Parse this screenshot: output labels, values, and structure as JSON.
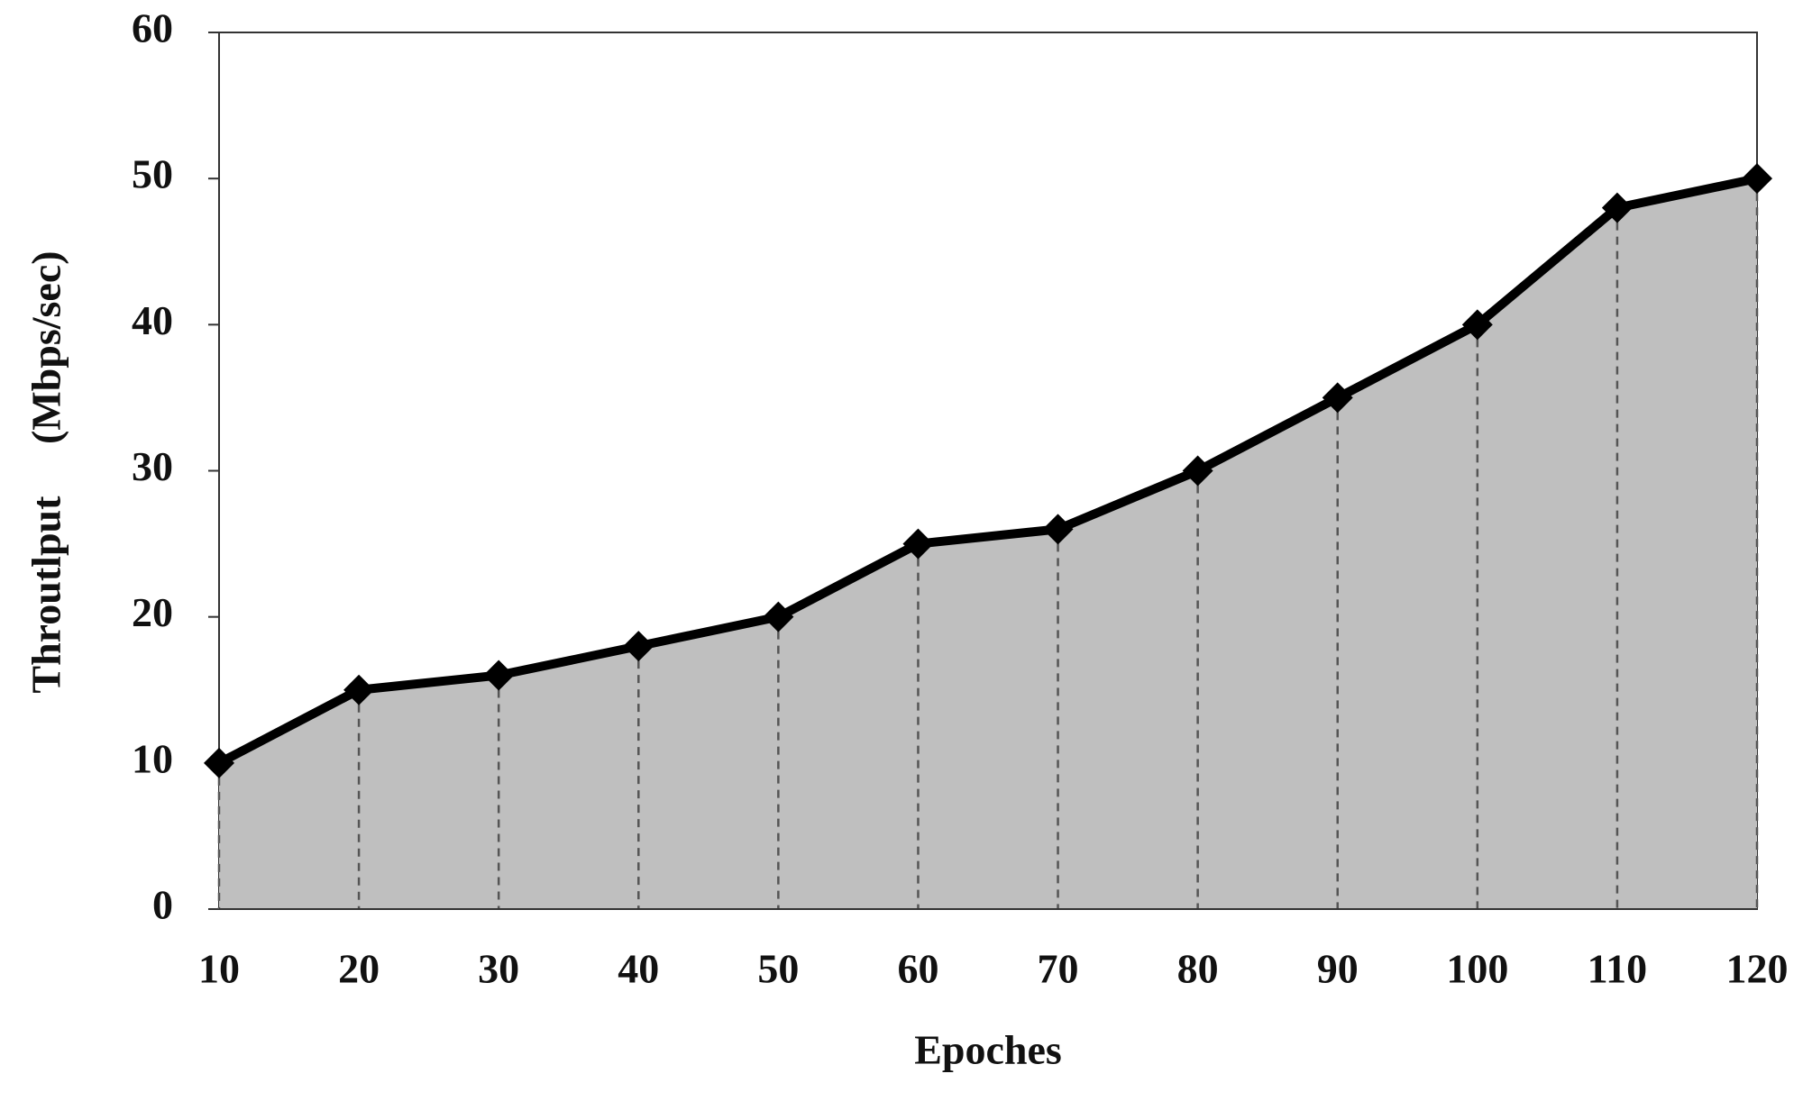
{
  "chart_data": {
    "type": "area",
    "x_label": "Epoches",
    "y_label": "Throutlput     (Mbps/sec)",
    "x": [
      10,
      20,
      30,
      40,
      50,
      60,
      70,
      80,
      90,
      100,
      110,
      120
    ],
    "series": [
      {
        "color": "#000000",
        "fill": "#bfbfbf",
        "values": [
          10,
          15,
          16,
          18,
          20,
          25,
          26,
          30,
          35,
          40,
          48,
          50
        ]
      }
    ],
    "xlim": [
      10,
      120
    ],
    "xticks": [
      10,
      20,
      30,
      40,
      50,
      60,
      70,
      80,
      90,
      100,
      110,
      120
    ],
    "ylim": [
      0,
      60
    ],
    "yticks": [
      0,
      10,
      20,
      30,
      40,
      50,
      60
    ],
    "drop_lines": true
  }
}
